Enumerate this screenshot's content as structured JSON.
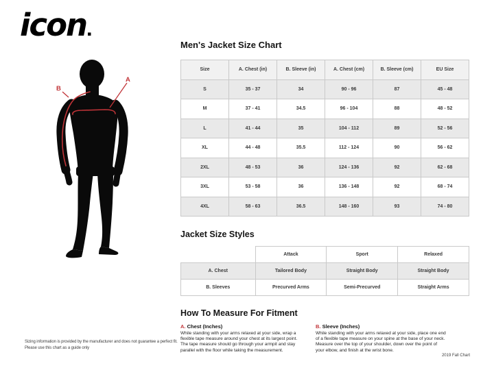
{
  "logo": {
    "text": "icon"
  },
  "figure": {
    "label_a": "A",
    "label_b": "B"
  },
  "size_chart": {
    "title": "Men's Jacket Size Chart",
    "table": {
      "headers": [
        "Size",
        "A. Chest (in)",
        "B. Sleeve (in)",
        "A. Chest (cm)",
        "B. Sleeve (cm)",
        "EU Size"
      ],
      "rows": [
        [
          "S",
          "35 - 37",
          "34",
          "90 - 96",
          "87",
          "45 - 48"
        ],
        [
          "M",
          "37 - 41",
          "34.5",
          "96 - 104",
          "88",
          "48 - 52"
        ],
        [
          "L",
          "41 - 44",
          "35",
          "104 - 112",
          "89",
          "52 - 56"
        ],
        [
          "XL",
          "44 - 48",
          "35.5",
          "112 - 124",
          "90",
          "56 - 62"
        ],
        [
          "2XL",
          "48 - 53",
          "36",
          "124 - 136",
          "92",
          "62 - 68"
        ],
        [
          "3XL",
          "53 - 58",
          "36",
          "136 - 148",
          "92",
          "68 - 74"
        ],
        [
          "4XL",
          "58 - 63",
          "36.5",
          "148 - 160",
          "93",
          "74 - 80"
        ]
      ]
    }
  },
  "styles": {
    "title": "Jacket Size Styles",
    "table": {
      "headers": [
        "",
        "Attack",
        "Sport",
        "Relaxed"
      ],
      "rows": [
        [
          "A. Chest",
          "Tailored Body",
          "Straight Body",
          "Straight Body"
        ],
        [
          "B. Sleeves",
          "Precurved Arms",
          "Semi-Precurved",
          "Straight Arms"
        ]
      ]
    }
  },
  "measure": {
    "title": "How To Measure For Fitment",
    "items": [
      {
        "prefix": "A.",
        "label": "Chest (Inches)",
        "text": "While standing with your arms relaxed at your side, wrap a flexible tape measure around your chest at its largest point. The tape measure should go through your armpit and stay parallel with the floor while taking the measurement."
      },
      {
        "prefix": "B.",
        "label": "Sleeve (Inches)",
        "text": "While standing with your arms relaxed at your side, place one end of a flexible tape measure on your spine at the base of your neck. Measure over the top of your shoulder, down over the point of your elbow, and finish at the wrist bone."
      }
    ]
  },
  "footer": {
    "disclaimer_line1": "Sizing information is provided by the manufacturer and does not guarantee a perfect fit.",
    "disclaimer_line2": "Please use this chart as a guide only",
    "chart_version": "2019 Fall Chart"
  },
  "colors": {
    "accent_red": "#c13438",
    "stripe": "#e9e9e9",
    "header_bg": "#f1f1f1",
    "silhouette": "#0a0a0a"
  }
}
